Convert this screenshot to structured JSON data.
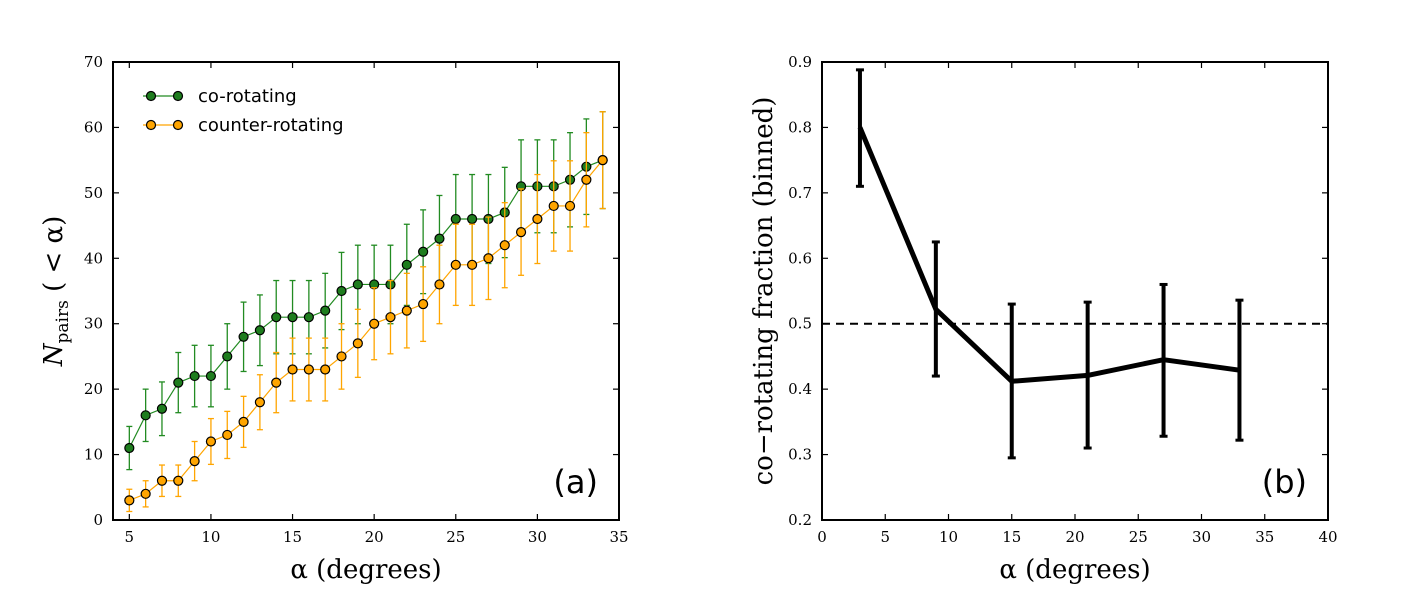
{
  "chart_data": [
    {
      "type": "line",
      "panel_label": "(a)",
      "xlabel": "α (degrees)",
      "ylabel": "N_pairs (< α)",
      "ylabel_main": "N",
      "ylabel_sub": "pairs",
      "ylabel_tail": " ( < α)",
      "xlim": [
        4,
        35
      ],
      "ylim": [
        0,
        70
      ],
      "xticks": [
        5,
        10,
        15,
        20,
        25,
        30,
        35
      ],
      "yticks": [
        0,
        10,
        20,
        30,
        40,
        50,
        60,
        70
      ],
      "legend_position": "upper-left",
      "x": [
        5,
        6,
        7,
        8,
        9,
        10,
        11,
        12,
        13,
        14,
        15,
        16,
        17,
        18,
        19,
        20,
        21,
        22,
        23,
        24,
        25,
        26,
        27,
        28,
        29,
        30,
        31,
        32,
        33,
        34
      ],
      "series": [
        {
          "name": "co-rotating",
          "color": "#228B22",
          "marker_fill": "#1e7d1e",
          "values": [
            11,
            16,
            17,
            21,
            22,
            22,
            25,
            28,
            29,
            31,
            31,
            31,
            32,
            35,
            36,
            36,
            36,
            39,
            41,
            43,
            46,
            46,
            46,
            47,
            51,
            51,
            51,
            52,
            54,
            55
          ],
          "errors": [
            3.3,
            4.0,
            4.1,
            4.6,
            4.7,
            4.7,
            5.0,
            5.3,
            5.4,
            5.6,
            5.6,
            5.6,
            5.7,
            5.9,
            6.0,
            6.0,
            6.0,
            6.2,
            6.4,
            6.6,
            6.8,
            6.8,
            6.8,
            6.9,
            7.1,
            7.1,
            7.1,
            7.2,
            7.3,
            7.4
          ]
        },
        {
          "name": "counter-rotating",
          "color": "#FFA500",
          "marker_fill": "#FFA500",
          "values": [
            3,
            4,
            6,
            6,
            9,
            12,
            13,
            15,
            18,
            21,
            23,
            23,
            23,
            25,
            27,
            30,
            31,
            32,
            33,
            36,
            39,
            39,
            40,
            42,
            44,
            46,
            48,
            48,
            52,
            55
          ],
          "errors": [
            1.7,
            2.0,
            2.4,
            2.4,
            3.0,
            3.5,
            3.6,
            3.9,
            4.2,
            4.6,
            4.8,
            4.8,
            4.8,
            5.0,
            5.2,
            5.5,
            5.6,
            5.7,
            5.7,
            6.0,
            6.2,
            6.2,
            6.3,
            6.5,
            6.6,
            6.8,
            6.9,
            6.9,
            7.2,
            7.4
          ]
        }
      ]
    },
    {
      "type": "line",
      "panel_label": "(b)",
      "xlabel": "α (degrees)",
      "ylabel": "co−rotating fraction (binned)",
      "xlim": [
        0,
        40
      ],
      "ylim": [
        0.2,
        0.9
      ],
      "xticks": [
        0,
        5,
        10,
        15,
        20,
        25,
        30,
        35,
        40
      ],
      "yticks": [
        0.2,
        0.3,
        0.4,
        0.5,
        0.6,
        0.7,
        0.8,
        0.9
      ],
      "reference_line": 0.5,
      "series": [
        {
          "name": "co-rotating fraction",
          "color": "#000000",
          "x": [
            3,
            9,
            15,
            21,
            27,
            33
          ],
          "values": [
            0.8,
            0.522,
            0.412,
            0.421,
            0.445,
            0.429
          ],
          "err_low": [
            0.71,
            0.42,
            0.295,
            0.31,
            0.328,
            0.322
          ],
          "err_high": [
            0.888,
            0.625,
            0.53,
            0.533,
            0.56,
            0.536
          ]
        }
      ]
    }
  ]
}
